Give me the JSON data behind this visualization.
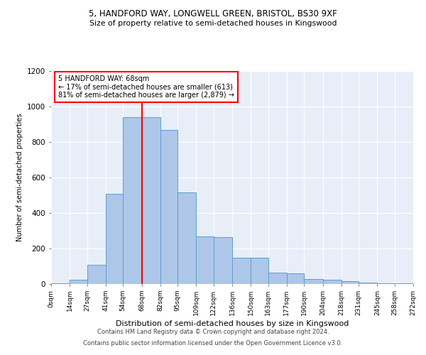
{
  "title1": "5, HANDFORD WAY, LONGWELL GREEN, BRISTOL, BS30 9XF",
  "title2": "Size of property relative to semi-detached houses in Kingswood",
  "xlabel": "Distribution of semi-detached houses by size in Kingswood",
  "ylabel": "Number of semi-detached properties",
  "annotation_title": "5 HANDFORD WAY: 68sqm",
  "annotation_line1": "← 17% of semi-detached houses are smaller (613)",
  "annotation_line2": "81% of semi-detached houses are larger (2,879) →",
  "footer1": "Contains HM Land Registry data © Crown copyright and database right 2024.",
  "footer2": "Contains public sector information licensed under the Open Government Licence v3.0.",
  "bin_edges": [
    0,
    14,
    27,
    41,
    54,
    68,
    82,
    95,
    109,
    122,
    136,
    150,
    163,
    177,
    190,
    204,
    218,
    231,
    245,
    258,
    272
  ],
  "bar_heights": [
    5,
    25,
    110,
    510,
    940,
    940,
    870,
    515,
    270,
    265,
    150,
    150,
    65,
    60,
    27,
    25,
    18,
    10,
    5,
    3
  ],
  "bar_color": "#aec6e8",
  "bar_edge_color": "#5a9fd4",
  "vline_x": 68,
  "vline_color": "red",
  "bg_color": "#e8eef8",
  "grid_color": "#ffffff",
  "annotation_box_color": "#ffffff",
  "annotation_box_edge": "red",
  "ylim": [
    0,
    1200
  ],
  "yticks": [
    0,
    200,
    400,
    600,
    800,
    1000,
    1200
  ]
}
